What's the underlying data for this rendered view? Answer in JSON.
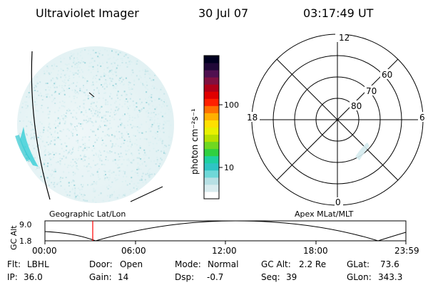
{
  "header": {
    "instrument": "Ultraviolet Imager",
    "date": "30 Jul 07",
    "time": "03:17:49 UT"
  },
  "colorbar": {
    "unit_label": "photon cm⁻²s⁻¹",
    "ticks": [
      {
        "value": 100,
        "label": "100"
      },
      {
        "value": 10,
        "label": "10"
      }
    ],
    "scale": "log",
    "colors": [
      "#ffffff",
      "#d9ecef",
      "#b7e0e4",
      "#6fd8d8",
      "#2fc4c4",
      "#1fd0a0",
      "#30d040",
      "#70d820",
      "#b8e000",
      "#e8f000",
      "#ffe000",
      "#ffb000",
      "#ff7000",
      "#ff2000",
      "#e00000",
      "#b00018",
      "#801040",
      "#501050",
      "#200838",
      "#000020"
    ]
  },
  "polar_plot": {
    "mlt_labels": {
      "top": "12",
      "left": "18",
      "right": "6",
      "bottom": "0"
    },
    "mlat_labels": [
      "60",
      "70",
      "80"
    ]
  },
  "panel_labels": {
    "left": "Geographic Lat/Lon",
    "right": "Apex MLat/MLT"
  },
  "altitude_plot": {
    "ylabel": "GC Alt",
    "yticks": [
      "9.0",
      "1.8"
    ],
    "xticks": [
      "00:00",
      "06:00",
      "12:00",
      "18:00",
      "23:59"
    ],
    "marker_color": "#ff0000",
    "marker_time": "03:17:49"
  },
  "status": {
    "row1": [
      {
        "key": "Flt:",
        "value": "LBHL"
      },
      {
        "key": "Door:",
        "value": "Open"
      },
      {
        "key": "Mode:",
        "value": "Normal"
      },
      {
        "key": "GC Alt:",
        "value": "2.2 Re"
      },
      {
        "key": "GLat:",
        "value": "73.6"
      }
    ],
    "row2": [
      {
        "key": "IP:",
        "value": "36.0"
      },
      {
        "key": "Gain:",
        "value": "14"
      },
      {
        "key": "Dsp:",
        "value": "-0.7"
      },
      {
        "key": "Seq:",
        "value": "39"
      },
      {
        "key": "GLon:",
        "value": "343.3"
      }
    ]
  }
}
